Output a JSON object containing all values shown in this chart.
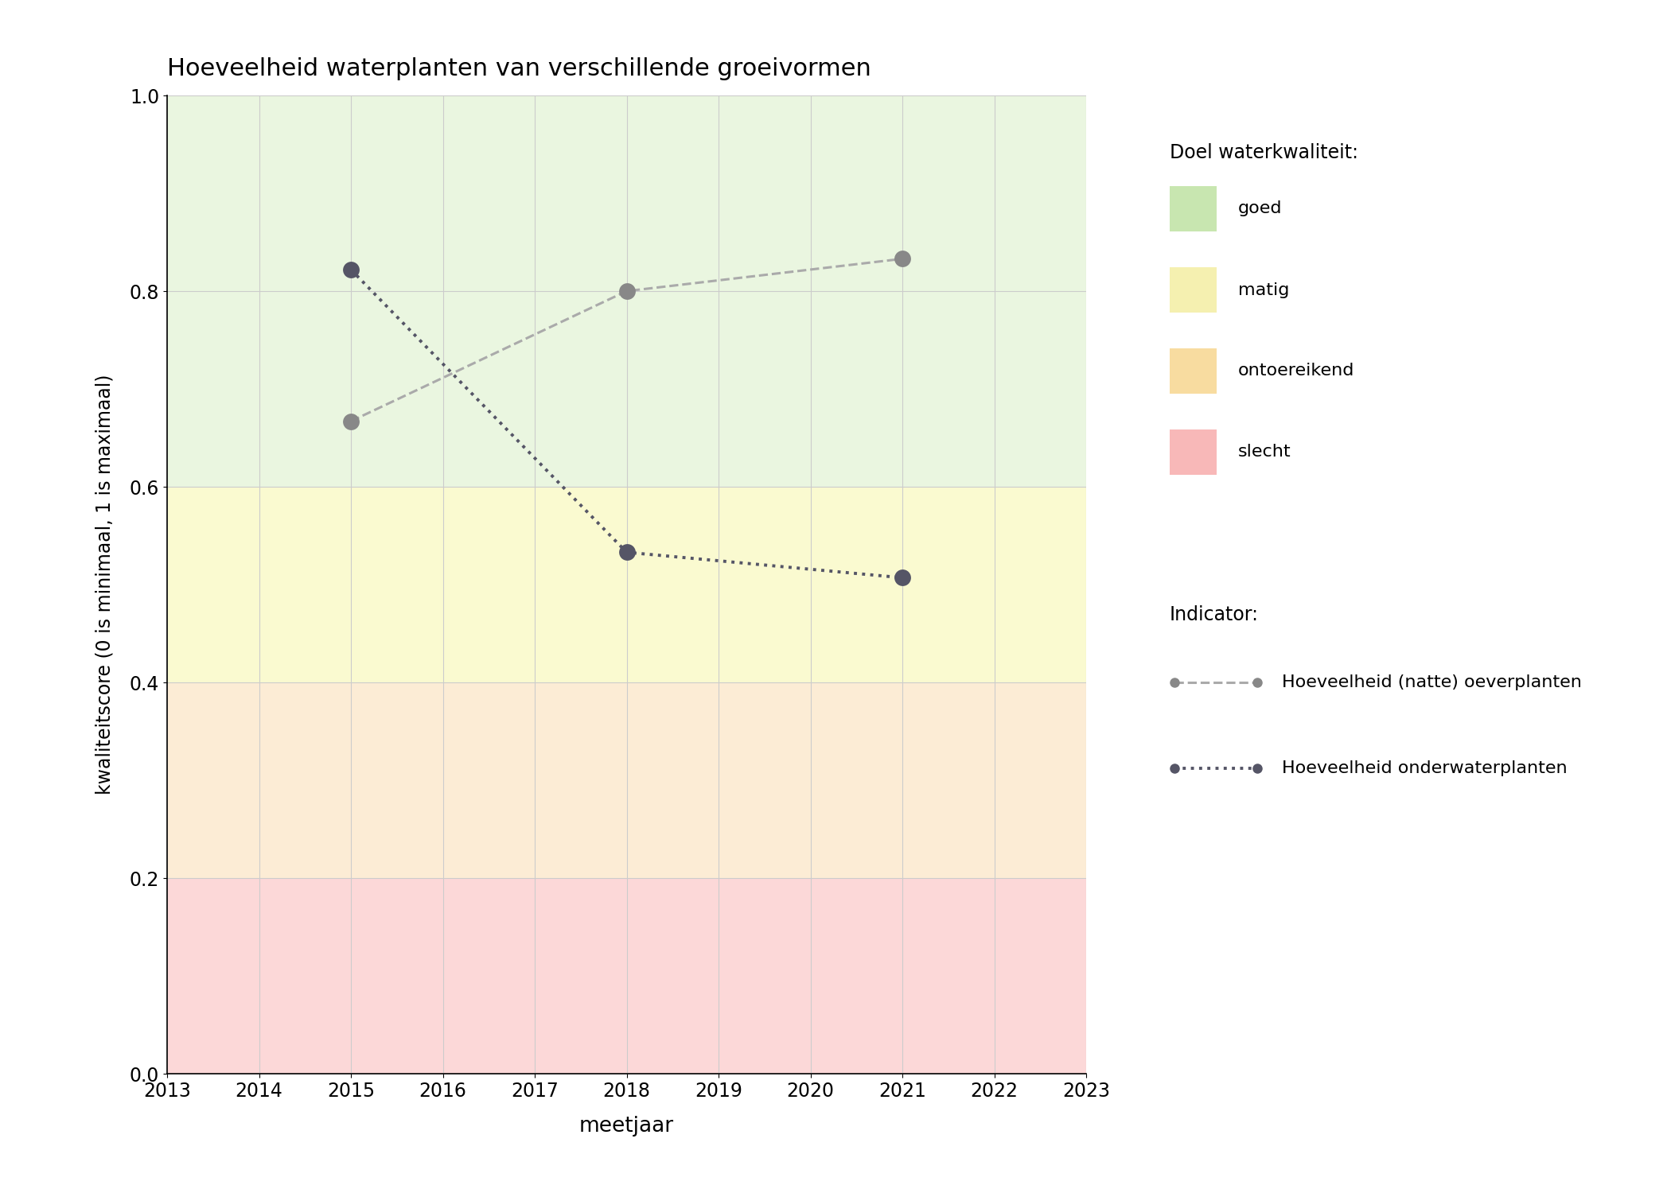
{
  "title": "Hoeveelheid waterplanten van verschillende groeivormen",
  "xlabel": "meetjaar",
  "ylabel": "kwaliteitscore (0 is minimaal, 1 is maximaal)",
  "xlim": [
    2013,
    2023
  ],
  "ylim": [
    0.0,
    1.0
  ],
  "xticks": [
    2013,
    2014,
    2015,
    2016,
    2017,
    2018,
    2019,
    2020,
    2021,
    2022,
    2023
  ],
  "yticks": [
    0.0,
    0.2,
    0.4,
    0.6,
    0.8,
    1.0
  ],
  "bg_zones": [
    {
      "ymin": 0.6,
      "ymax": 1.0,
      "color": "#eaf6e0"
    },
    {
      "ymin": 0.4,
      "ymax": 0.6,
      "color": "#fafad0"
    },
    {
      "ymin": 0.2,
      "ymax": 0.4,
      "color": "#fcecd5"
    },
    {
      "ymin": 0.0,
      "ymax": 0.2,
      "color": "#fcd8d8"
    }
  ],
  "series": [
    {
      "label": "Hoeveelheid (natte) oeverplanten",
      "x": [
        2015,
        2018,
        2021
      ],
      "y": [
        0.667,
        0.8,
        0.833
      ],
      "linestyle": "--",
      "color": "#aaaaaa",
      "linewidth": 2.2,
      "markersize": 15,
      "markerfacecolor": "#888888"
    },
    {
      "label": "Hoeveelheid onderwaterplanten",
      "x": [
        2015,
        2018,
        2021
      ],
      "y": [
        0.822,
        0.533,
        0.507
      ],
      "linestyle": ":",
      "color": "#555566",
      "linewidth": 2.8,
      "markersize": 15,
      "markerfacecolor": "#555566"
    }
  ],
  "legend_title_doel": "Doel waterkwaliteit:",
  "legend_title_indicator": "Indicator:",
  "bg_legend_colors": [
    "#c8e6b0",
    "#f5f0b0",
    "#f8dca0",
    "#f8b8b8"
  ],
  "bg_legend_labels": [
    "goed",
    "matig",
    "ontoereikend",
    "slecht"
  ],
  "background_color": "#ffffff",
  "grid_color": "#cccccc"
}
